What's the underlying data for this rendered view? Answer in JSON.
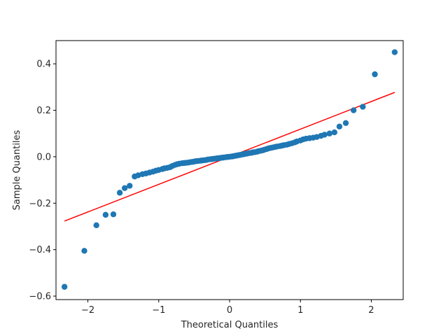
{
  "chart_data": {
    "type": "scatter",
    "title": "",
    "xlabel": "Theoretical Quantiles",
    "ylabel": "Sample Quantiles",
    "xlim": [
      -2.45,
      2.45
    ],
    "ylim": [
      -0.615,
      0.5
    ],
    "xticks": [
      -2,
      -1,
      0,
      1,
      2
    ],
    "yticks": [
      -0.6,
      -0.4,
      -0.2,
      0.0,
      0.2,
      0.4
    ],
    "grid": false,
    "colors": {
      "points": "#1f77b4",
      "line": "#ff0000"
    },
    "reference_line": {
      "x": [
        -2.33,
        2.33
      ],
      "y": [
        -0.277,
        0.277
      ]
    },
    "points": {
      "x": [
        -2.33,
        -2.05,
        -1.88,
        -1.75,
        -1.64,
        -1.55,
        -1.48,
        -1.41,
        -1.34,
        -1.29,
        -1.23,
        -1.18,
        -1.13,
        -1.08,
        -1.04,
        -1.0,
        -0.95,
        -0.92,
        -0.88,
        -0.84,
        -0.81,
        -0.77,
        -0.74,
        -0.71,
        -0.67,
        -0.64,
        -0.61,
        -0.58,
        -0.55,
        -0.52,
        -0.49,
        -0.47,
        -0.44,
        -0.41,
        -0.39,
        -0.36,
        -0.33,
        -0.31,
        -0.28,
        -0.25,
        -0.23,
        -0.2,
        -0.18,
        -0.15,
        -0.13,
        -0.1,
        -0.08,
        -0.05,
        -0.03,
        0.0,
        0.03,
        0.05,
        0.08,
        0.1,
        0.13,
        0.15,
        0.18,
        0.2,
        0.23,
        0.25,
        0.28,
        0.31,
        0.33,
        0.36,
        0.39,
        0.41,
        0.44,
        0.47,
        0.49,
        0.52,
        0.55,
        0.58,
        0.61,
        0.64,
        0.67,
        0.71,
        0.74,
        0.77,
        0.81,
        0.84,
        0.88,
        0.92,
        0.95,
        1.0,
        1.04,
        1.08,
        1.13,
        1.18,
        1.23,
        1.29,
        1.34,
        1.41,
        1.48,
        1.55,
        1.64,
        1.75,
        1.88,
        2.05,
        2.33
      ],
      "y": [
        -0.56,
        -0.405,
        -0.295,
        -0.25,
        -0.248,
        -0.155,
        -0.135,
        -0.125,
        -0.085,
        -0.08,
        -0.075,
        -0.072,
        -0.068,
        -0.064,
        -0.06,
        -0.057,
        -0.053,
        -0.05,
        -0.048,
        -0.045,
        -0.04,
        -0.035,
        -0.032,
        -0.03,
        -0.028,
        -0.027,
        -0.026,
        -0.025,
        -0.023,
        -0.022,
        -0.02,
        -0.019,
        -0.018,
        -0.017,
        -0.016,
        -0.015,
        -0.014,
        -0.012,
        -0.011,
        -0.01,
        -0.009,
        -0.008,
        -0.007,
        -0.006,
        -0.005,
        -0.004,
        -0.003,
        -0.002,
        -0.001,
        0.0,
        0.001,
        0.002,
        0.004,
        0.005,
        0.007,
        0.008,
        0.01,
        0.011,
        0.013,
        0.014,
        0.016,
        0.017,
        0.019,
        0.02,
        0.022,
        0.024,
        0.026,
        0.028,
        0.03,
        0.033,
        0.036,
        0.038,
        0.04,
        0.042,
        0.044,
        0.046,
        0.048,
        0.05,
        0.052,
        0.055,
        0.058,
        0.062,
        0.066,
        0.07,
        0.075,
        0.078,
        0.08,
        0.082,
        0.085,
        0.09,
        0.095,
        0.1,
        0.105,
        0.13,
        0.145,
        0.2,
        0.215,
        0.355,
        0.45
      ]
    }
  }
}
